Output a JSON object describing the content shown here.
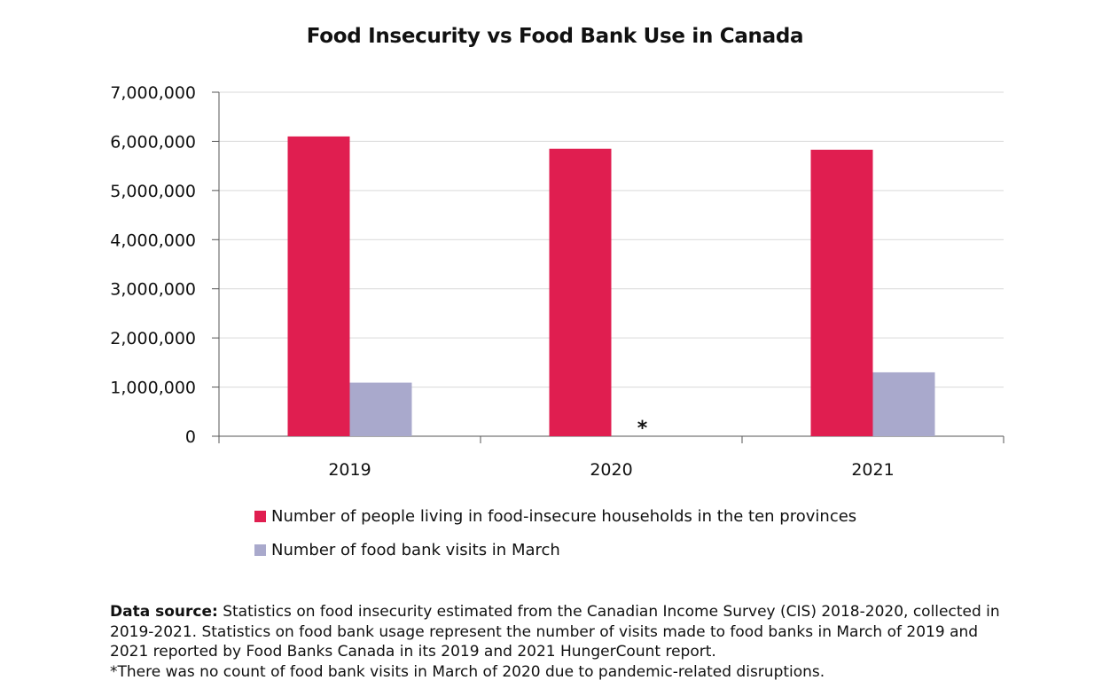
{
  "chart_data": {
    "type": "bar",
    "title": "Food Insecurity vs Food Bank Use in Canada",
    "categories": [
      "2019",
      "2020",
      "2021"
    ],
    "series": [
      {
        "name": "Number of people living in food-insecure households in the ten provinces",
        "color": "#e01e50",
        "values": [
          6100000,
          5850000,
          5830000
        ]
      },
      {
        "name": "Number of food bank visits in March",
        "color": "#a9a9cc",
        "values": [
          1090000,
          null,
          1300000
        ]
      }
    ],
    "ylim": [
      0,
      7000000
    ],
    "yticks": [
      "0",
      "1,000,000",
      "2,000,000",
      "3,000,000",
      "4,000,000",
      "5,000,000",
      "6,000,000",
      "7,000,000"
    ],
    "ytick_values": [
      0,
      1000000,
      2000000,
      3000000,
      4000000,
      5000000,
      6000000,
      7000000
    ],
    "grid": true,
    "legend_position": "bottom",
    "annotations": [
      {
        "category": "2020",
        "series": 1,
        "text": "*"
      }
    ]
  },
  "footnote": {
    "label": "Data source:",
    "text": "Statistics on food insecurity estimated from the Canadian Income Survey (CIS) 2018-2020, collected in 2019-2021. Statistics on food bank usage represent the number of visits made to food banks in March of 2019 and 2021 reported by Food Banks Canada in its 2019 and 2021 HungerCount report.",
    "note": "*There was no count of food bank visits in March of 2020 due to pandemic-related disruptions."
  }
}
